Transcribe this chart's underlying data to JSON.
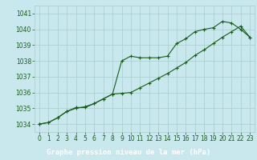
{
  "title": "Graphe pression niveau de la mer (hPa)",
  "bg_color": "#c8e8ee",
  "label_bg_color": "#2d6e2d",
  "label_text_color": "#ffffff",
  "grid_color": "#a8cccc",
  "line_color": "#1a5c1a",
  "x_values": [
    0,
    1,
    2,
    3,
    4,
    5,
    6,
    7,
    8,
    9,
    10,
    11,
    12,
    13,
    14,
    15,
    16,
    17,
    18,
    19,
    20,
    21,
    22,
    23
  ],
  "y_series1": [
    1034.0,
    1034.1,
    1034.4,
    1034.8,
    1035.0,
    1035.1,
    1035.3,
    1035.6,
    1035.9,
    1038.0,
    1038.3,
    1038.2,
    1038.2,
    1038.2,
    1038.3,
    1039.1,
    1039.4,
    1039.85,
    1040.0,
    1040.1,
    1040.5,
    1040.4,
    1040.0,
    1039.5
  ],
  "y_series2": [
    1034.0,
    1034.1,
    1034.4,
    1034.8,
    1035.05,
    1035.05,
    1035.3,
    1035.6,
    1035.9,
    1035.95,
    1036.0,
    1036.3,
    1036.6,
    1036.9,
    1037.2,
    1037.55,
    1037.9,
    1038.35,
    1038.7,
    1039.1,
    1039.5,
    1039.85,
    1040.2,
    1039.5
  ],
  "ylim_min": 1033.5,
  "ylim_max": 1041.5,
  "xlim_min": -0.5,
  "xlim_max": 23.5,
  "yticks": [
    1034,
    1035,
    1036,
    1037,
    1038,
    1039,
    1040,
    1041
  ],
  "xticks": [
    0,
    1,
    2,
    3,
    4,
    5,
    6,
    7,
    8,
    9,
    10,
    11,
    12,
    13,
    14,
    15,
    16,
    17,
    18,
    19,
    20,
    21,
    22,
    23
  ],
  "tick_label_color": "#1a5c1a",
  "tick_fontsize": 5.5,
  "label_fontsize": 6.5
}
